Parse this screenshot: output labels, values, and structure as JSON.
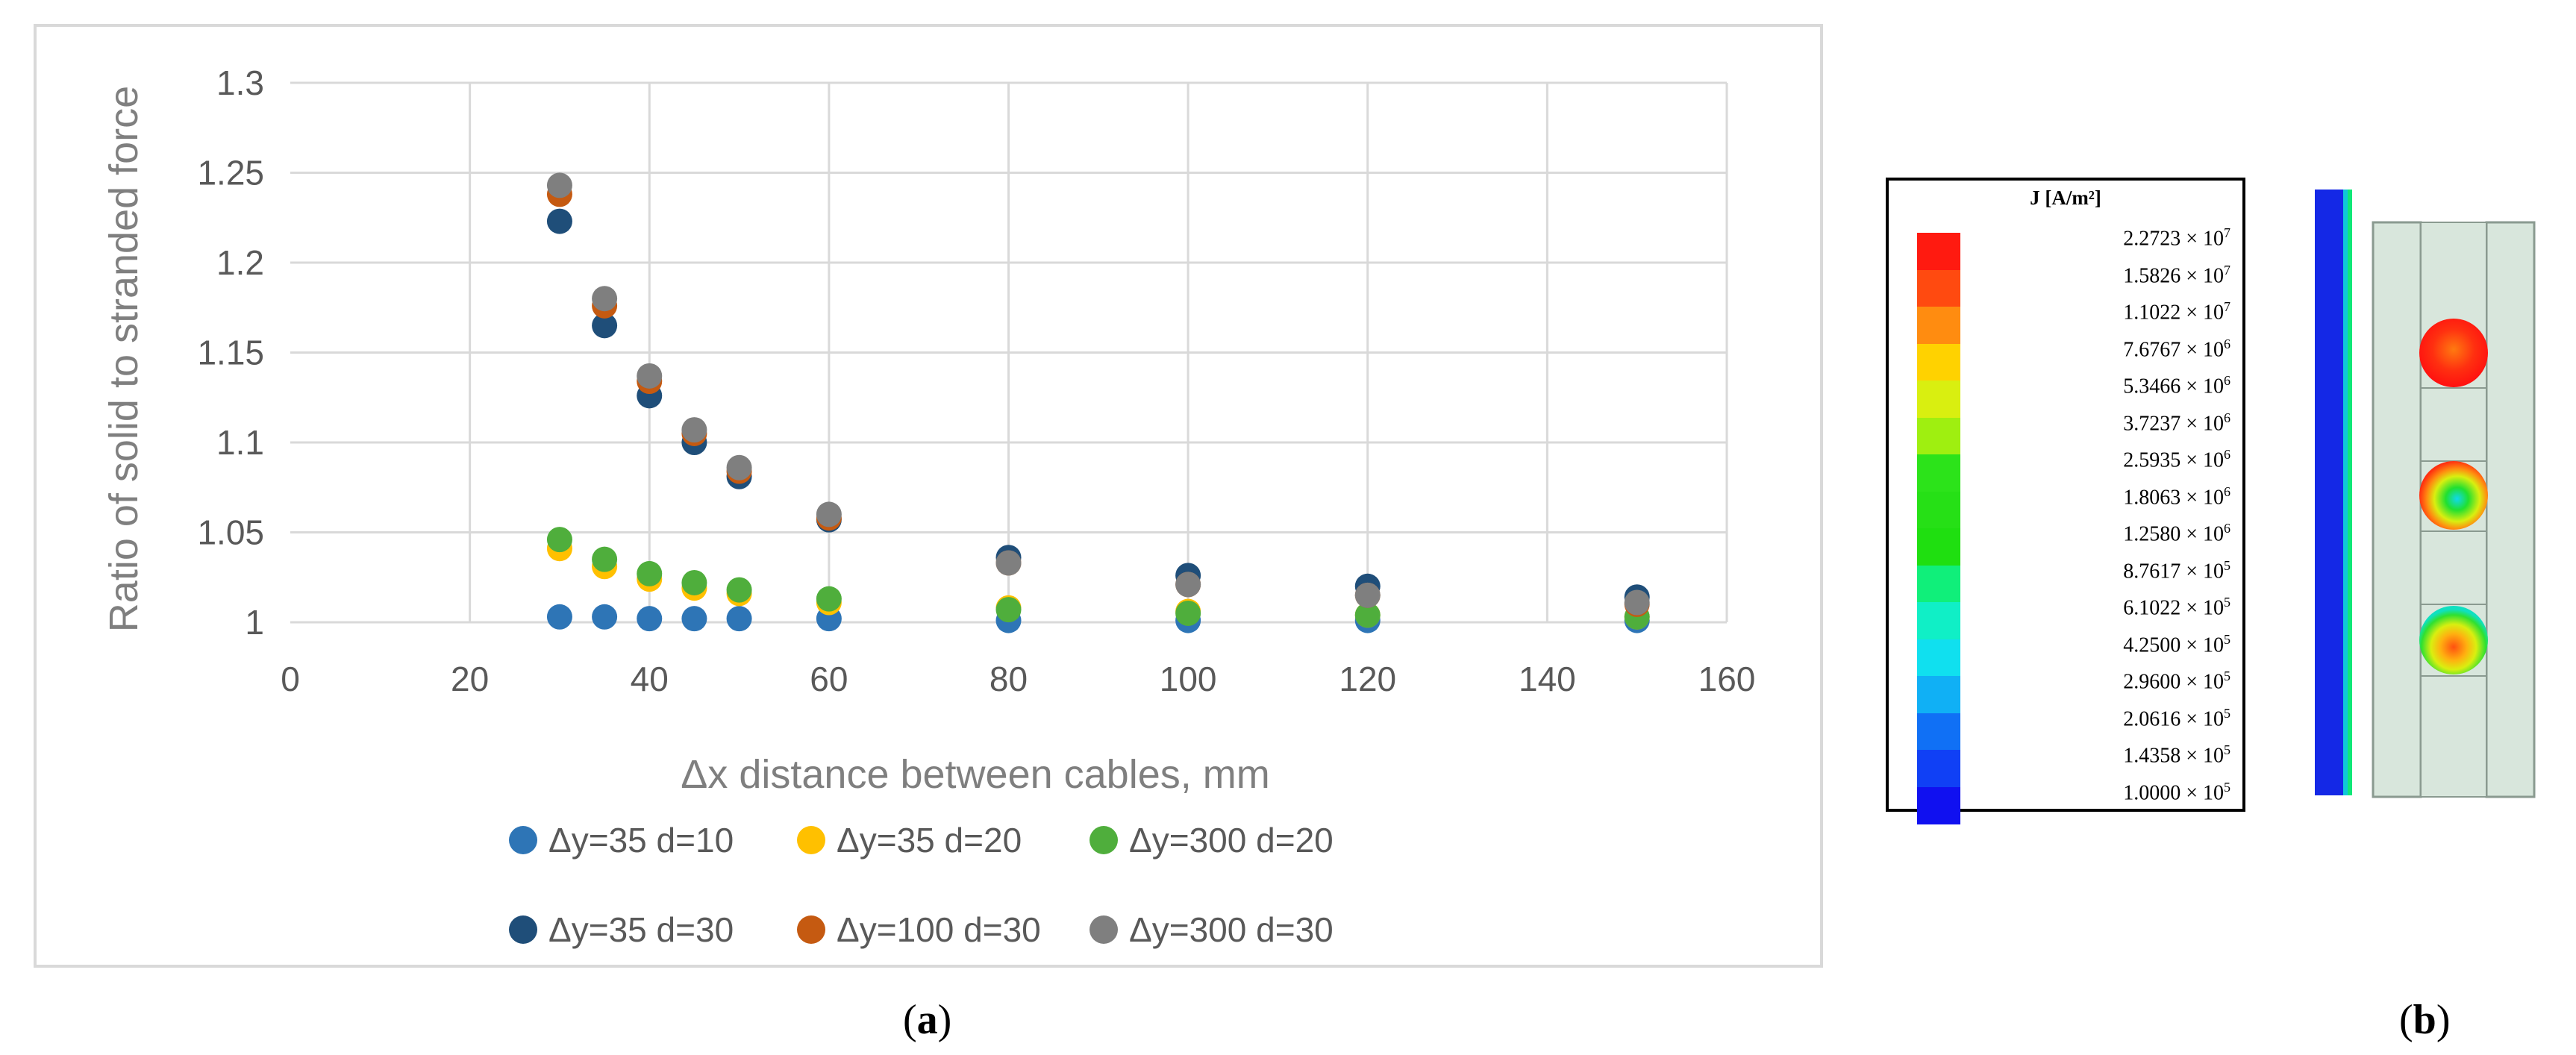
{
  "chart_data": [
    {
      "type": "scatter",
      "xlabel": "Δx distance between cables, mm",
      "ylabel": "Ratio of solid to stranded force",
      "xlim": [
        0,
        160
      ],
      "ylim": [
        1,
        1.3
      ],
      "x_ticks": [
        "0",
        "20",
        "40",
        "60",
        "80",
        "100",
        "120",
        "140",
        "160"
      ],
      "y_ticks": [
        "1",
        "1.05",
        "1.1",
        "1.15",
        "1.2",
        "1.25",
        "1.3"
      ],
      "grid": true,
      "legend_position": "bottom",
      "series": [
        {
          "name": "Δy=35 d=10",
          "color": "#2e75b6",
          "x": [
            30,
            35,
            40,
            45,
            50,
            60,
            80,
            100,
            120,
            150
          ],
          "y": [
            1.003,
            1.003,
            1.002,
            1.002,
            1.002,
            1.002,
            1.001,
            1.001,
            1.001,
            1.001
          ]
        },
        {
          "name": "Δy=35 d=20",
          "color": "#ffc000",
          "x": [
            30,
            35,
            40,
            45,
            50,
            60,
            80,
            100,
            120,
            150
          ],
          "y": [
            1.041,
            1.031,
            1.024,
            1.019,
            1.016,
            1.011,
            1.008,
            1.006,
            1.004,
            1.003
          ]
        },
        {
          "name": "Δy=300 d=20",
          "color": "#4fae3c",
          "x": [
            30,
            35,
            40,
            45,
            50,
            60,
            80,
            100,
            120,
            150
          ],
          "y": [
            1.046,
            1.035,
            1.027,
            1.022,
            1.018,
            1.013,
            1.007,
            1.005,
            1.004,
            1.003
          ]
        },
        {
          "name": "Δy=35 d=30",
          "color": "#1f4e79",
          "x": [
            30,
            35,
            40,
            45,
            50,
            60,
            80,
            100,
            120,
            150
          ],
          "y": [
            1.223,
            1.165,
            1.126,
            1.1,
            1.081,
            1.057,
            1.036,
            1.026,
            1.02,
            1.014
          ]
        },
        {
          "name": "Δy=100 d=30",
          "color": "#c55a11",
          "x": [
            30,
            35,
            40,
            45,
            50,
            60,
            80,
            100,
            120,
            150
          ],
          "y": [
            1.238,
            1.176,
            1.134,
            1.105,
            1.084,
            1.058,
            1.033,
            1.021,
            1.015,
            1.01
          ]
        },
        {
          "name": "Δy=300 d=30",
          "color": "#7f7f7f",
          "x": [
            30,
            35,
            40,
            45,
            50,
            60,
            80,
            100,
            120,
            150
          ],
          "y": [
            1.243,
            1.18,
            1.137,
            1.107,
            1.086,
            1.06,
            1.033,
            1.021,
            1.015,
            1.011
          ]
        }
      ]
    },
    {
      "type": "heatmap",
      "colorbar_title": "J [A/m²]",
      "colorbar": [
        {
          "mantissa": "2.2723",
          "exp": "7",
          "color": "#ff1a10"
        },
        {
          "mantissa": "1.5826",
          "exp": "7",
          "color": "#ff4a10"
        },
        {
          "mantissa": "1.1022",
          "exp": "7",
          "color": "#ff8c10"
        },
        {
          "mantissa": "7.6767",
          "exp": "6",
          "color": "#ffd200"
        },
        {
          "mantissa": "5.3466",
          "exp": "6",
          "color": "#d9ef10"
        },
        {
          "mantissa": "3.7237",
          "exp": "6",
          "color": "#9fef10"
        },
        {
          "mantissa": "2.5935",
          "exp": "6",
          "color": "#2ce31a"
        },
        {
          "mantissa": "1.8063",
          "exp": "6",
          "color": "#26e016"
        },
        {
          "mantissa": "1.2580",
          "exp": "6",
          "color": "#1fdf10"
        },
        {
          "mantissa": "8.7617",
          "exp": "5",
          "color": "#10ef7a"
        },
        {
          "mantissa": "6.1022",
          "exp": "5",
          "color": "#10efc6"
        },
        {
          "mantissa": "4.2500",
          "exp": "5",
          "color": "#10e0ef"
        },
        {
          "mantissa": "2.9600",
          "exp": "5",
          "color": "#10b0f5"
        },
        {
          "mantissa": "2.0616",
          "exp": "5",
          "color": "#1070f5"
        },
        {
          "mantissa": "1.4358",
          "exp": "5",
          "color": "#1040f5"
        },
        {
          "mantissa": "1.0000",
          "exp": "5",
          "color": "#1010f0"
        }
      ]
    }
  ],
  "labels": {
    "panel_a": "a",
    "panel_b": "b"
  },
  "colors": {
    "grid": "#d9d9d9",
    "axis_text": "#595959",
    "ylabel_text": "#7f7f7f",
    "simulation_bg": "#d8e6dc"
  }
}
